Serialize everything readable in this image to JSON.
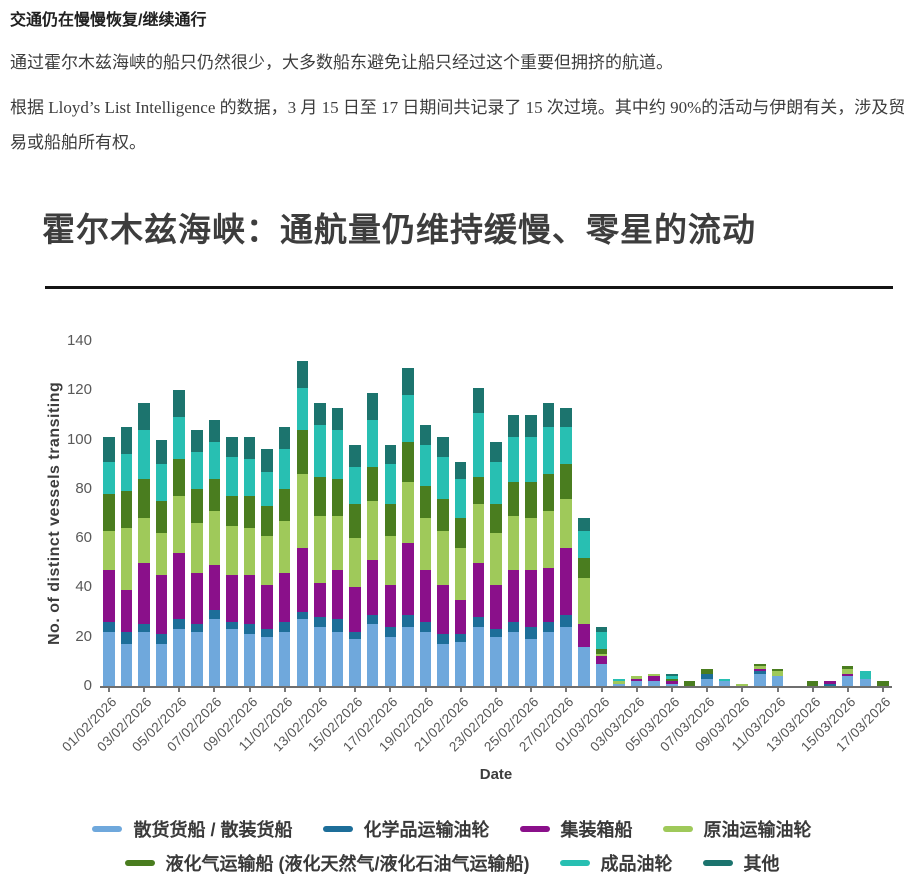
{
  "page": {
    "heading": "交通仍在慢慢恢复/继续通行",
    "paragraph1": "通过霍尔木兹海峡的船只仍然很少，大多数船东避免让船只经过这个重要但拥挤的航道。",
    "paragraph2": "根据 Lloyd’s List Intelligence 的数据，3 月 15 日至 17 日期间共记录了 15 次过境。其中约 90%的活动与伊朗有关，涉及贸易或船舶所有权。"
  },
  "chart_data": {
    "type": "bar",
    "stacked": true,
    "title": "霍尔木兹海峡：通航量仍维持缓慢、零星的流动",
    "xlabel": "Date",
    "ylabel": "No. of distinct vessels transiting",
    "ylim": [
      0,
      140
    ],
    "yticks": [
      0,
      20,
      40,
      60,
      80,
      100,
      120,
      140
    ],
    "grid": false,
    "legend_position": "bottom",
    "x_tick_every": 2,
    "legend_rows": [
      [
        0,
        1,
        2,
        3
      ],
      [
        4,
        5,
        6
      ]
    ],
    "categories": [
      "01/02/2026",
      "02/02/2026",
      "03/02/2026",
      "04/02/2026",
      "05/02/2026",
      "06/02/2026",
      "07/02/2026",
      "08/02/2026",
      "09/02/2026",
      "10/02/2026",
      "11/02/2026",
      "12/02/2026",
      "13/02/2026",
      "14/02/2026",
      "15/02/2026",
      "16/02/2026",
      "17/02/2026",
      "18/02/2026",
      "19/02/2026",
      "20/02/2026",
      "21/02/2026",
      "22/02/2026",
      "23/02/2026",
      "24/02/2026",
      "25/02/2026",
      "26/02/2026",
      "27/02/2026",
      "28/02/2026",
      "01/03/2026",
      "02/03/2026",
      "03/03/2026",
      "04/03/2026",
      "05/03/2026",
      "06/03/2026",
      "07/03/2026",
      "08/03/2026",
      "09/03/2026",
      "10/03/2026",
      "11/03/2026",
      "12/03/2026",
      "13/03/2026",
      "14/03/2026",
      "15/03/2026",
      "16/03/2026",
      "17/03/2026"
    ],
    "series": [
      {
        "name": "散货货船 / 散装货船",
        "color": "#6FA8DC",
        "values": [
          22,
          17,
          22,
          17,
          23,
          22,
          27,
          23,
          21,
          20,
          22,
          27,
          24,
          22,
          19,
          25,
          20,
          24,
          22,
          17,
          18,
          24,
          20,
          22,
          19,
          22,
          24,
          16,
          9,
          1,
          2,
          2,
          1,
          0,
          3,
          2,
          0,
          5,
          4,
          0,
          0,
          0,
          4,
          3,
          0
        ]
      },
      {
        "name": "化学品运输油轮",
        "color": "#1D6E99",
        "values": [
          4,
          5,
          3,
          4,
          4,
          3,
          4,
          3,
          4,
          3,
          4,
          3,
          4,
          5,
          3,
          4,
          4,
          5,
          4,
          4,
          3,
          4,
          3,
          4,
          5,
          4,
          5,
          0,
          0,
          0,
          0,
          0,
          0,
          0,
          2,
          0,
          0,
          1,
          0,
          0,
          0,
          1,
          0,
          0,
          0
        ]
      },
      {
        "name": "集装箱船",
        "color": "#8A108A",
        "values": [
          21,
          17,
          25,
          24,
          27,
          21,
          18,
          19,
          20,
          18,
          20,
          26,
          14,
          20,
          18,
          22,
          17,
          29,
          21,
          20,
          14,
          22,
          18,
          21,
          23,
          22,
          27,
          9,
          3,
          0,
          1,
          2,
          1,
          0,
          0,
          0,
          0,
          1,
          0,
          0,
          0,
          1,
          1,
          0,
          0
        ]
      },
      {
        "name": "原油运输油轮",
        "color": "#9FC95A",
        "values": [
          16,
          25,
          18,
          17,
          23,
          20,
          22,
          20,
          19,
          20,
          21,
          30,
          27,
          22,
          20,
          24,
          20,
          25,
          21,
          22,
          21,
          24,
          21,
          22,
          21,
          23,
          20,
          19,
          1,
          1,
          1,
          1,
          0,
          0,
          0,
          0,
          1,
          1,
          2,
          0,
          0,
          0,
          2,
          0,
          0
        ]
      },
      {
        "name": "液化气运输船 (液化天然气/液化石油气运输船)",
        "color": "#4A7D1F",
        "values": [
          15,
          15,
          16,
          13,
          15,
          14,
          13,
          12,
          13,
          12,
          13,
          18,
          16,
          15,
          14,
          14,
          13,
          16,
          13,
          13,
          12,
          11,
          12,
          14,
          15,
          15,
          14,
          8,
          2,
          0,
          0,
          0,
          1,
          2,
          2,
          0,
          0,
          1,
          1,
          0,
          2,
          0,
          1,
          0,
          2
        ]
      },
      {
        "name": "成品油轮",
        "color": "#28BFB2",
        "values": [
          13,
          15,
          20,
          15,
          17,
          15,
          15,
          16,
          15,
          14,
          16,
          17,
          21,
          20,
          15,
          19,
          16,
          19,
          17,
          17,
          16,
          26,
          17,
          18,
          18,
          19,
          15,
          11,
          7,
          1,
          0,
          0,
          1,
          0,
          0,
          1,
          0,
          0,
          0,
          0,
          0,
          0,
          0,
          3,
          0
        ]
      },
      {
        "name": "其他",
        "color": "#1C746E",
        "values": [
          10,
          11,
          11,
          10,
          11,
          9,
          9,
          8,
          9,
          9,
          9,
          11,
          9,
          9,
          9,
          11,
          8,
          11,
          8,
          8,
          7,
          10,
          8,
          9,
          9,
          10,
          8,
          5,
          2,
          0,
          0,
          0,
          1,
          0,
          0,
          0,
          0,
          0,
          0,
          0,
          0,
          0,
          0,
          0,
          0
        ]
      }
    ]
  }
}
